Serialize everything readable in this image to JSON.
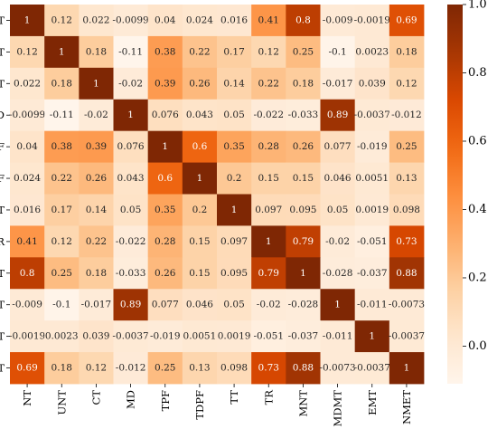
{
  "chart_data": {
    "type": "heatmap",
    "title": "",
    "xlabel": "",
    "ylabel": "",
    "categories": [
      "NT",
      "UNT",
      "CT",
      "MD",
      "TPF",
      "TDPF",
      "TT",
      "TR",
      "MNT",
      "MDMT",
      "EMT",
      "NMET"
    ],
    "values": [
      [
        1,
        0.12,
        0.022,
        -0.0099,
        0.04,
        0.024,
        0.016,
        0.41,
        0.8,
        -0.009,
        -0.0019,
        0.69
      ],
      [
        0.12,
        1,
        0.18,
        -0.11,
        0.38,
        0.22,
        0.17,
        0.12,
        0.25,
        -0.1,
        0.0023,
        0.18
      ],
      [
        0.022,
        0.18,
        1,
        -0.02,
        0.39,
        0.26,
        0.14,
        0.22,
        0.18,
        -0.017,
        0.039,
        0.12
      ],
      [
        -0.0099,
        -0.11,
        -0.02,
        1,
        0.076,
        0.043,
        0.05,
        -0.022,
        -0.033,
        0.89,
        -0.0037,
        -0.012
      ],
      [
        0.04,
        0.38,
        0.39,
        0.076,
        1,
        0.6,
        0.35,
        0.28,
        0.26,
        0.077,
        -0.019,
        0.25
      ],
      [
        0.024,
        0.22,
        0.26,
        0.043,
        0.6,
        1,
        0.2,
        0.15,
        0.15,
        0.046,
        0.0051,
        0.13
      ],
      [
        0.016,
        0.17,
        0.14,
        0.05,
        0.35,
        0.2,
        1,
        0.097,
        0.095,
        0.05,
        0.0019,
        0.098
      ],
      [
        0.41,
        0.12,
        0.22,
        -0.022,
        0.28,
        0.15,
        0.097,
        1,
        0.79,
        -0.02,
        -0.051,
        0.73
      ],
      [
        0.8,
        0.25,
        0.18,
        -0.033,
        0.26,
        0.15,
        0.095,
        0.79,
        1,
        -0.028,
        -0.037,
        0.88
      ],
      [
        -0.009,
        -0.1,
        -0.017,
        0.89,
        0.077,
        0.046,
        0.05,
        -0.02,
        -0.028,
        1,
        -0.011,
        -0.0073
      ],
      [
        -0.0019,
        0.0023,
        0.039,
        -0.0037,
        -0.019,
        0.0051,
        0.0019,
        -0.051,
        -0.037,
        -0.011,
        1,
        -0.0037
      ],
      [
        0.69,
        0.18,
        0.12,
        -0.012,
        0.25,
        0.13,
        0.098,
        0.73,
        0.88,
        -0.0073,
        -0.0037,
        1
      ]
    ],
    "labels": [
      [
        "1",
        "0.12",
        "0.022",
        "-0.0099",
        "0.04",
        "0.024",
        "0.016",
        "0.41",
        "0.8",
        "-0.009",
        "-0.0019",
        "0.69"
      ],
      [
        "0.12",
        "1",
        "0.18",
        "-0.11",
        "0.38",
        "0.22",
        "0.17",
        "0.12",
        "0.25",
        "-0.1",
        "0.0023",
        "0.18"
      ],
      [
        "0.022",
        "0.18",
        "1",
        "-0.02",
        "0.39",
        "0.26",
        "0.14",
        "0.22",
        "0.18",
        "-0.017",
        "0.039",
        "0.12"
      ],
      [
        "-0.0099",
        "-0.11",
        "-0.02",
        "1",
        "0.076",
        "0.043",
        "0.05",
        "-0.022",
        "-0.033",
        "0.89",
        "-0.0037",
        "-0.012"
      ],
      [
        "0.04",
        "0.38",
        "0.39",
        "0.076",
        "1",
        "0.6",
        "0.35",
        "0.28",
        "0.26",
        "0.077",
        "-0.019",
        "0.25"
      ],
      [
        "0.024",
        "0.22",
        "0.26",
        "0.043",
        "0.6",
        "1",
        "0.2",
        "0.15",
        "0.15",
        "0.046",
        "0.0051",
        "0.13"
      ],
      [
        "0.016",
        "0.17",
        "0.14",
        "0.05",
        "0.35",
        "0.2",
        "1",
        "0.097",
        "0.095",
        "0.05",
        "0.0019",
        "0.098"
      ],
      [
        "0.41",
        "0.12",
        "0.22",
        "-0.022",
        "0.28",
        "0.15",
        "0.097",
        "1",
        "0.79",
        "-0.02",
        "-0.051",
        "0.73"
      ],
      [
        "0.8",
        "0.25",
        "0.18",
        "-0.033",
        "0.26",
        "0.15",
        "0.095",
        "0.79",
        "1",
        "-0.028",
        "-0.037",
        "0.88"
      ],
      [
        "-0.009",
        "-0.1",
        "-0.017",
        "0.89",
        "0.077",
        "0.046",
        "0.05",
        "-0.02",
        "-0.028",
        "1",
        "-0.011",
        "-0.0073"
      ],
      [
        "-0.0019",
        "0.0023",
        "0.039",
        "-0.0037",
        "-0.019",
        "0.0051",
        "0.0019",
        "-0.051",
        "-0.037",
        "-0.011",
        "1",
        "-0.0037"
      ],
      [
        "0.69",
        "0.18",
        "0.12",
        "-0.012",
        "0.25",
        "0.13",
        "0.098",
        "0.73",
        "0.88",
        "-0.0073",
        "-0.0037",
        "1"
      ]
    ],
    "colorbar": {
      "range": [
        -0.11,
        1.0
      ],
      "ticks": [
        0.0,
        0.2,
        0.4,
        0.6,
        0.8,
        1.0
      ],
      "tick_labels": [
        "0.0",
        "0.2",
        "0.4",
        "0.6",
        "0.8",
        "1.0"
      ],
      "colormap": "Oranges",
      "color_low": "#fff5eb",
      "color_high": "#7f2704"
    },
    "legend": "right",
    "grid": false
  }
}
